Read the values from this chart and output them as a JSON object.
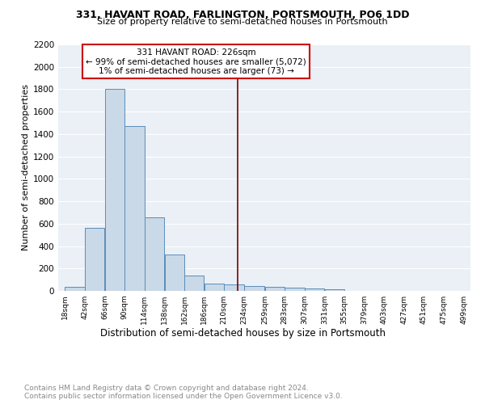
{
  "title1": "331, HAVANT ROAD, FARLINGTON, PORTSMOUTH, PO6 1DD",
  "title2": "Size of property relative to semi-detached houses in Portsmouth",
  "xlabel": "Distribution of semi-detached houses by size in Portsmouth",
  "ylabel": "Number of semi-detached properties",
  "footnote": "Contains HM Land Registry data © Crown copyright and database right 2024.\nContains public sector information licensed under the Open Government Licence v3.0.",
  "bar_edges": [
    18,
    42,
    66,
    90,
    114,
    138,
    162,
    186,
    210,
    234,
    259,
    283,
    307,
    331,
    355,
    379,
    403,
    427,
    451,
    475,
    499
  ],
  "bar_heights": [
    35,
    565,
    1800,
    1470,
    655,
    325,
    135,
    68,
    60,
    45,
    33,
    27,
    20,
    13,
    0,
    0,
    0,
    0,
    0,
    0
  ],
  "bar_color": "#c9d9e8",
  "bar_edgecolor": "#5b8db8",
  "property_size": 226,
  "vline_color": "#7b0000",
  "annotation_box_color": "#cc0000",
  "annotation_line1": "331 HAVANT ROAD: 226sqm",
  "annotation_line2": "← 99% of semi-detached houses are smaller (5,072)",
  "annotation_line3": "1% of semi-detached houses are larger (73) →",
  "ylim": [
    0,
    2200
  ],
  "yticks": [
    0,
    200,
    400,
    600,
    800,
    1000,
    1200,
    1400,
    1600,
    1800,
    2000,
    2200
  ],
  "bg_color": "#eaf0f6",
  "grid_color": "#ffffff",
  "tick_labels": [
    "18sqm",
    "42sqm",
    "66sqm",
    "90sqm",
    "114sqm",
    "138sqm",
    "162sqm",
    "186sqm",
    "210sqm",
    "234sqm",
    "259sqm",
    "283sqm",
    "307sqm",
    "331sqm",
    "355sqm",
    "379sqm",
    "403sqm",
    "427sqm",
    "451sqm",
    "475sqm",
    "499sqm"
  ],
  "title1_fontsize": 9,
  "title2_fontsize": 8,
  "ylabel_fontsize": 8,
  "xlabel_fontsize": 8.5,
  "footnote_fontsize": 6.5,
  "footnote_color": "#888888",
  "annot_fontsize": 7.5
}
